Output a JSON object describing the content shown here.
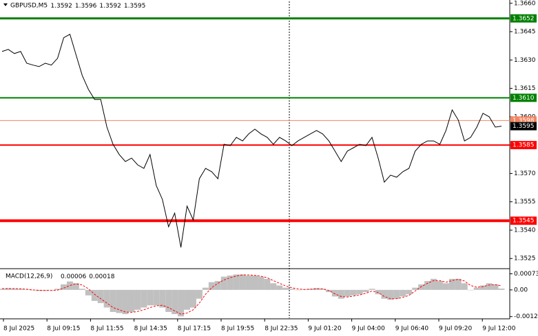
{
  "chart_data": [
    {
      "type": "line",
      "title": "GBPUSD,M5",
      "ohlc": [
        1.3592,
        1.3596,
        1.3592,
        1.3595
      ],
      "color": "#000000",
      "values": [
        1.36345,
        1.36356,
        1.36334,
        1.36345,
        1.36283,
        1.36273,
        1.36265,
        1.36283,
        1.36273,
        1.36309,
        1.36418,
        1.36436,
        1.36327,
        1.36218,
        1.36145,
        1.36091,
        1.36091,
        1.35945,
        1.35854,
        1.358,
        1.35763,
        1.35781,
        1.35745,
        1.35727,
        1.358,
        1.35636,
        1.35563,
        1.35418,
        1.3549,
        1.35309,
        1.35527,
        1.35454,
        1.35672,
        1.35727,
        1.35709,
        1.35672,
        1.35854,
        1.35847,
        1.35891,
        1.35872,
        1.35909,
        1.35934,
        1.35909,
        1.35891,
        1.35854,
        1.35891,
        1.35872,
        1.35847,
        1.35872,
        1.35891,
        1.35909,
        1.35927,
        1.35909,
        1.35872,
        1.35818,
        1.35763,
        1.35818,
        1.35836,
        1.35854,
        1.35847,
        1.35891,
        1.35781,
        1.35654,
        1.35691,
        1.3568,
        1.35709,
        1.35727,
        1.35818,
        1.35854,
        1.35872,
        1.35872,
        1.35854,
        1.35927,
        1.36036,
        1.35982,
        1.35872,
        1.35891,
        1.35945,
        1.36018,
        1.36,
        1.35945,
        1.3595
      ],
      "ylim": [
        1.352,
        1.3661
      ],
      "yticks": [
        {
          "value": 1.366,
          "label": "1.3660"
        },
        1.3645,
        {
          "value": 1.363,
          "label": "1.3630"
        },
        1.3615,
        {
          "value": 1.36,
          "label": "1.3600"
        },
        1.3585,
        {
          "value": 1.357,
          "label": "1.3570"
        },
        1.3555,
        {
          "value": 1.354,
          "label": "1.3540"
        },
        1.3525
      ],
      "hlines": [
        {
          "value": 1.3652,
          "color": "#008000",
          "width": 3
        },
        {
          "value": 1.361,
          "label": "1.3610",
          "color": "#008000",
          "width": 2
        },
        {
          "value": 1.3598,
          "color": "#f4845f",
          "width": 1
        },
        {
          "value": 1.3585,
          "color": "#ff0000",
          "width": 2
        },
        {
          "value": 1.3545,
          "color": "#ff0000",
          "width": 4
        }
      ],
      "time_labels": [
        "8 Jul 2025",
        "8 Jul 09:15",
        "8 Jul 11:55",
        "8 Jul 14:35",
        "8 Jul 17:15",
        "8 Jul 19:55",
        "8 Jul 22:35",
        "9 Jul 01:20",
        "9 Jul 04:00",
        "9 Jul 06:40",
        "9 Jul 09:20",
        "9 Jul 12:00"
      ]
    },
    {
      "type": "macd",
      "title": "MACD(12,26,9)",
      "readout": [
        6e-05,
        0.00018
      ],
      "histogram": {
        "color": "#c0c0c0",
        "values": [
          5e-05,
          8e-05,
          6e-05,
          5e-05,
          2e-05,
          -2e-05,
          -5e-05,
          -4e-05,
          -2e-05,
          5e-05,
          0.00025,
          0.00038,
          0.0003,
          5e-05,
          -0.00025,
          -0.0005,
          -0.0006,
          -0.0008,
          -0.001,
          -0.00105,
          -0.0011,
          -0.001,
          -0.0009,
          -0.0008,
          -0.0007,
          -0.0007,
          -0.0008,
          -0.001,
          -0.0011,
          -0.0012,
          -0.0009,
          -0.0008,
          -0.0004,
          0.0001,
          0.00035,
          0.0004,
          0.0006,
          0.00065,
          0.0007,
          0.0007,
          0.00065,
          0.00065,
          0.0006,
          0.0005,
          0.0003,
          0.0002,
          0.0001,
          5e-05,
          0,
          2e-05,
          5e-05,
          8e-05,
          5e-05,
          -0.0001,
          -0.0003,
          -0.0004,
          -0.0003,
          -0.00025,
          -0.0002,
          -0.0001,
          5e-05,
          -0.0002,
          -0.0004,
          -0.00045,
          -0.0004,
          -0.0003,
          -0.0002,
          0.0001,
          0.00025,
          0.0004,
          0.0005,
          0.0004,
          0.0003,
          0.0005,
          0.0005,
          0.0003,
          0,
          0.0001,
          0.0002,
          0.0003,
          0.00025,
          6e-05
        ]
      },
      "signal": {
        "color": "#ff0000",
        "values": [
          6e-05,
          6e-05,
          6e-05,
          5e-05,
          3e-05,
          0,
          -2e-05,
          -3e-05,
          -3e-05,
          -1e-05,
          8e-05,
          0.0002,
          0.00028,
          0.00022,
          5e-05,
          -0.0002,
          -0.0004,
          -0.0006,
          -0.0008,
          -0.0009,
          -0.001,
          -0.00102,
          -0.00098,
          -0.0009,
          -0.0008,
          -0.00072,
          -0.0007,
          -0.0008,
          -0.00095,
          -0.0011,
          -0.00105,
          -0.0009,
          -0.0006,
          -0.0002,
          0.0001,
          0.0003,
          0.00045,
          0.00055,
          0.00063,
          0.00068,
          0.00068,
          0.00066,
          0.00062,
          0.00055,
          0.00042,
          0.0003,
          0.00018,
          0.0001,
          4e-05,
          2e-05,
          3e-05,
          5e-05,
          5e-05,
          -3e-05,
          -0.00018,
          -0.0003,
          -0.00032,
          -0.00028,
          -0.00023,
          -0.00015,
          -5e-05,
          -0.00012,
          -0.0003,
          -0.0004,
          -0.0004,
          -0.00034,
          -0.00025,
          -5e-05,
          0.00015,
          0.0003,
          0.00042,
          0.00042,
          0.00035,
          0.00042,
          0.00048,
          0.0004,
          0.0002,
          0.00012,
          0.00015,
          0.00022,
          0.00024,
          0.00018
        ]
      },
      "ylim": [
        -0.00125,
        0.0009
      ],
      "yticks": [
        0.00073,
        {
          "value": 0,
          "label": "0.00"
        },
        -0.00121
      ]
    }
  ]
}
